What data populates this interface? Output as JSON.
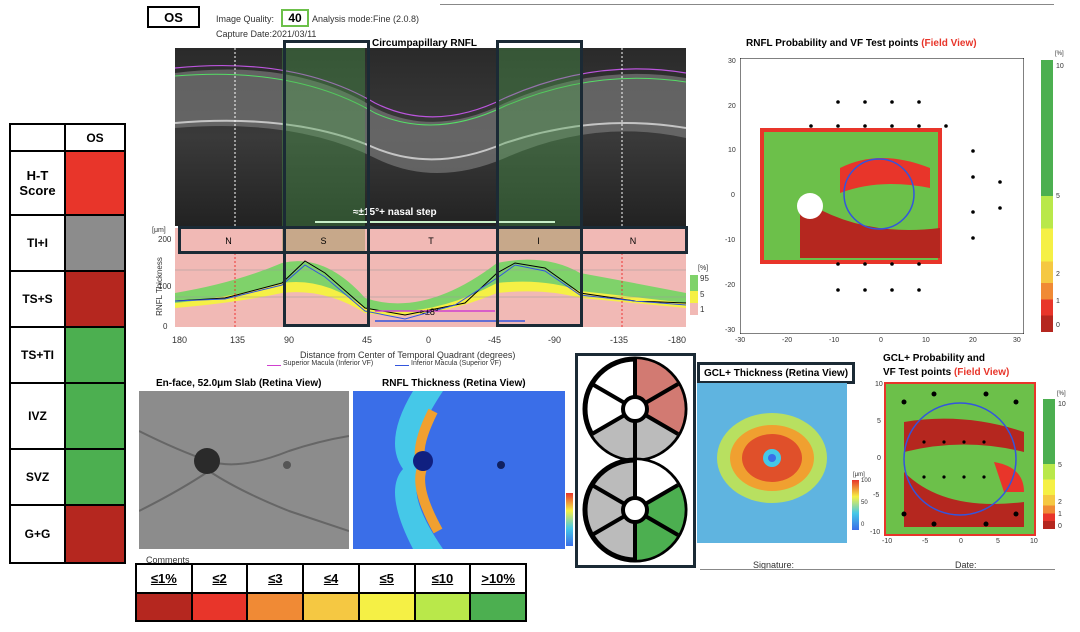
{
  "header": {
    "eye": "OS",
    "image_quality_label": "Image Quality:",
    "image_quality_value": "40",
    "analysis_mode": "Analysis mode:Fine (2.0.8)",
    "capture_date": "Capture Date:2021/03/11"
  },
  "bscan": {
    "title": "Circumpapillary RNFL",
    "nasal_step": "≈±15°+ nasal step",
    "angle_annotation": "≈±8°"
  },
  "thickness_plot": {
    "unit": "[μm]",
    "ylabel": "RNFL Thickness",
    "quadrants": [
      "N",
      "S",
      "T",
      "I",
      "N"
    ],
    "y_ticks": [
      "200",
      "100",
      "0"
    ],
    "x_ticks": [
      "180",
      "135",
      "90",
      "45",
      "0",
      "-45",
      "-90",
      "-135",
      "-180"
    ],
    "xlabel": "Distance from Center of Temporal Quadrant (degrees)",
    "legend_superior": "Superior Macula (Inferior VF)",
    "legend_inferior": "Inferior Macula (Superior VF)",
    "pct_unit": "[%]",
    "pct_ticks": [
      "95",
      "5",
      "1"
    ]
  },
  "rnfl_prob": {
    "title": "RNFL Probability and VF Test points",
    "title_highlight": "(Field View)",
    "y_ticks": [
      "30",
      "20",
      "10",
      "0",
      "-10",
      "-20",
      "-30"
    ],
    "x_ticks": [
      "-30",
      "-20",
      "-10",
      "0",
      "10",
      "20",
      "30"
    ],
    "scale_unit": "[%]",
    "scale_ticks": [
      "10",
      "5",
      "2",
      "1",
      "0"
    ]
  },
  "score_table": {
    "header": "OS",
    "rows": [
      {
        "name": "H-T Score",
        "color": "#e8352a"
      },
      {
        "name": "TI+I",
        "color": "#8c8c8c"
      },
      {
        "name": "TS+S",
        "color": "#b5271f"
      },
      {
        "name": "TS+TI",
        "color": "#4caf50"
      },
      {
        "name": "IVZ",
        "color": "#4caf50"
      },
      {
        "name": "SVZ",
        "color": "#4caf50"
      },
      {
        "name": "G+G",
        "color": "#b5271f"
      }
    ]
  },
  "enface": {
    "title": "En-face, 52.0μm Slab (Retina View)"
  },
  "rnfl_thickness_map": {
    "title": "RNFL Thickness (Retina View)"
  },
  "gcl_thickness": {
    "title": "GCL+ Thickness (Retina View)",
    "unit": "[μm]",
    "ticks": [
      "100",
      "50",
      "0"
    ]
  },
  "gcl_prob": {
    "title_line1": "GCL+ Probability and",
    "title_line2": "VF Test points",
    "title_highlight": "(Field View)",
    "y_ticks": [
      "10",
      "5",
      "0",
      "-5",
      "-10"
    ],
    "x_ticks": [
      "-10",
      "-5",
      "0",
      "5",
      "10"
    ],
    "scale_unit": "[%]",
    "scale_ticks": [
      "10",
      "5",
      "2",
      "1",
      "0"
    ]
  },
  "footer": {
    "comments": "Comments",
    "signature": "Signature:",
    "date": "Date:"
  },
  "legend": {
    "items": [
      {
        "label": "≤1%",
        "color": "#b5271f"
      },
      {
        "label": "≤2",
        "color": "#e8352a"
      },
      {
        "label": "≤3",
        "color": "#f08a35"
      },
      {
        "label": "≤4",
        "color": "#f5c842"
      },
      {
        "label": "≤5",
        "color": "#f5f045"
      },
      {
        "label": "≤10",
        "color": "#b9e84a"
      },
      {
        "label": ">10%",
        "color": "#4caf50"
      }
    ]
  },
  "colors": {
    "highlight_red": "#e8352a",
    "box_border": "#1b2a35",
    "quality_border": "#6cc04a"
  }
}
